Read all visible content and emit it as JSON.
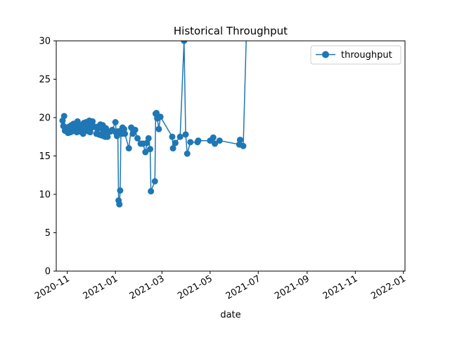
{
  "chart_data": {
    "type": "line",
    "title": "Historical Throughput",
    "xlabel": "date",
    "ylabel": "",
    "xlim": [
      "2020-10-18",
      "2022-01-03"
    ],
    "ylim": [
      0,
      30
    ],
    "x_ticks": [
      "2020-11",
      "2021-01",
      "2021-03",
      "2021-05",
      "2021-07",
      "2021-09",
      "2021-11",
      "2022-01"
    ],
    "y_ticks": [
      0,
      5,
      10,
      15,
      20,
      25,
      30
    ],
    "grid": false,
    "legend": {
      "position": "top-right",
      "entries": [
        "throughput"
      ]
    },
    "color": "#1f77b4",
    "series": [
      {
        "name": "throughput",
        "points": [
          [
            "2020-10-26",
            19.6
          ],
          [
            "2020-10-27",
            18.9
          ],
          [
            "2020-10-28",
            20.2
          ],
          [
            "2020-10-29",
            18.3
          ],
          [
            "2020-10-30",
            18.7
          ],
          [
            "2020-10-31",
            18.2
          ],
          [
            "2020-11-01",
            18.6
          ],
          [
            "2020-11-02",
            18.0
          ],
          [
            "2020-11-03",
            18.8
          ],
          [
            "2020-11-04",
            18.3
          ],
          [
            "2020-11-05",
            18.1
          ],
          [
            "2020-11-06",
            19.0
          ],
          [
            "2020-11-07",
            18.2
          ],
          [
            "2020-11-08",
            18.5
          ],
          [
            "2020-11-09",
            19.2
          ],
          [
            "2020-11-10",
            18.3
          ],
          [
            "2020-11-11",
            18.9
          ],
          [
            "2020-11-12",
            18.6
          ],
          [
            "2020-11-13",
            18.1
          ],
          [
            "2020-11-14",
            19.5
          ],
          [
            "2020-11-15",
            18.4
          ],
          [
            "2020-11-16",
            18.8
          ],
          [
            "2020-11-17",
            18.2
          ],
          [
            "2020-11-18",
            19.0
          ],
          [
            "2020-11-19",
            18.6
          ],
          [
            "2020-11-20",
            18.4
          ],
          [
            "2020-11-21",
            17.9
          ],
          [
            "2020-11-22",
            19.3
          ],
          [
            "2020-11-23",
            18.8
          ],
          [
            "2020-11-24",
            18.3
          ],
          [
            "2020-11-25",
            19.4
          ],
          [
            "2020-11-26",
            18.5
          ],
          [
            "2020-11-27",
            19.0
          ],
          [
            "2020-11-28",
            18.2
          ],
          [
            "2020-11-29",
            19.6
          ],
          [
            "2020-11-30",
            18.1
          ],
          [
            "2020-12-01",
            19.3
          ],
          [
            "2020-12-02",
            18.7
          ],
          [
            "2020-12-03",
            19.5
          ],
          [
            "2020-12-04",
            18.9
          ],
          [
            "2020-12-08",
            17.9
          ],
          [
            "2020-12-09",
            18.8
          ],
          [
            "2020-12-10",
            18.6
          ],
          [
            "2020-12-11",
            17.8
          ],
          [
            "2020-12-12",
            18.9
          ],
          [
            "2020-12-13",
            19.1
          ],
          [
            "2020-12-14",
            17.7
          ],
          [
            "2020-12-15",
            18.6
          ],
          [
            "2020-12-16",
            19.0
          ],
          [
            "2020-12-17",
            17.6
          ],
          [
            "2020-12-18",
            18.3
          ],
          [
            "2020-12-19",
            17.5
          ],
          [
            "2020-12-20",
            18.6
          ],
          [
            "2020-12-21",
            17.7
          ],
          [
            "2020-12-22",
            17.5
          ],
          [
            "2020-12-23",
            18.1
          ],
          [
            "2020-12-26",
            18.2
          ],
          [
            "2020-12-28",
            18.4
          ],
          [
            "2021-01-01",
            19.4
          ],
          [
            "2021-01-02",
            18.0
          ],
          [
            "2021-01-03",
            17.6
          ],
          [
            "2021-01-04",
            18.2
          ],
          [
            "2021-01-05",
            9.2
          ],
          [
            "2021-01-06",
            8.7
          ],
          [
            "2021-01-07",
            10.5
          ],
          [
            "2021-01-08",
            18.3
          ],
          [
            "2021-01-09",
            17.9
          ],
          [
            "2021-01-10",
            18.7
          ],
          [
            "2021-01-11",
            18.2
          ],
          [
            "2021-01-12",
            18.5
          ],
          [
            "2021-01-13",
            17.9
          ],
          [
            "2021-01-18",
            16.0
          ],
          [
            "2021-01-21",
            18.7
          ],
          [
            "2021-01-23",
            17.9
          ],
          [
            "2021-01-26",
            18.4
          ],
          [
            "2021-01-29",
            17.3
          ],
          [
            "2021-02-02",
            16.6
          ],
          [
            "2021-02-05",
            16.6
          ],
          [
            "2021-02-08",
            15.5
          ],
          [
            "2021-02-10",
            16.7
          ],
          [
            "2021-02-12",
            17.3
          ],
          [
            "2021-02-14",
            15.9
          ],
          [
            "2021-02-15",
            10.4
          ],
          [
            "2021-02-20",
            11.7
          ],
          [
            "2021-02-21",
            20.5
          ],
          [
            "2021-02-22",
            20.6
          ],
          [
            "2021-02-23",
            19.9
          ],
          [
            "2021-02-25",
            18.5
          ],
          [
            "2021-02-27",
            20.1
          ],
          [
            "2021-03-14",
            17.5
          ],
          [
            "2021-03-15",
            16.0
          ],
          [
            "2021-03-18",
            16.7
          ],
          [
            "2021-03-24",
            17.5
          ],
          [
            "2021-03-29",
            30.0
          ],
          [
            "2021-03-31",
            17.8
          ],
          [
            "2021-04-02",
            15.3
          ],
          [
            "2021-04-06",
            16.8
          ],
          [
            "2021-04-15",
            16.8
          ],
          [
            "2021-04-16",
            17.0
          ],
          [
            "2021-05-01",
            17.0
          ],
          [
            "2021-05-05",
            17.4
          ],
          [
            "2021-05-07",
            16.6
          ],
          [
            "2021-05-13",
            17.0
          ],
          [
            "2021-06-07",
            16.5
          ],
          [
            "2021-06-08",
            17.1
          ],
          [
            "2021-06-12",
            16.3
          ],
          [
            "2021-06-16",
            31.0
          ]
        ]
      }
    ]
  }
}
